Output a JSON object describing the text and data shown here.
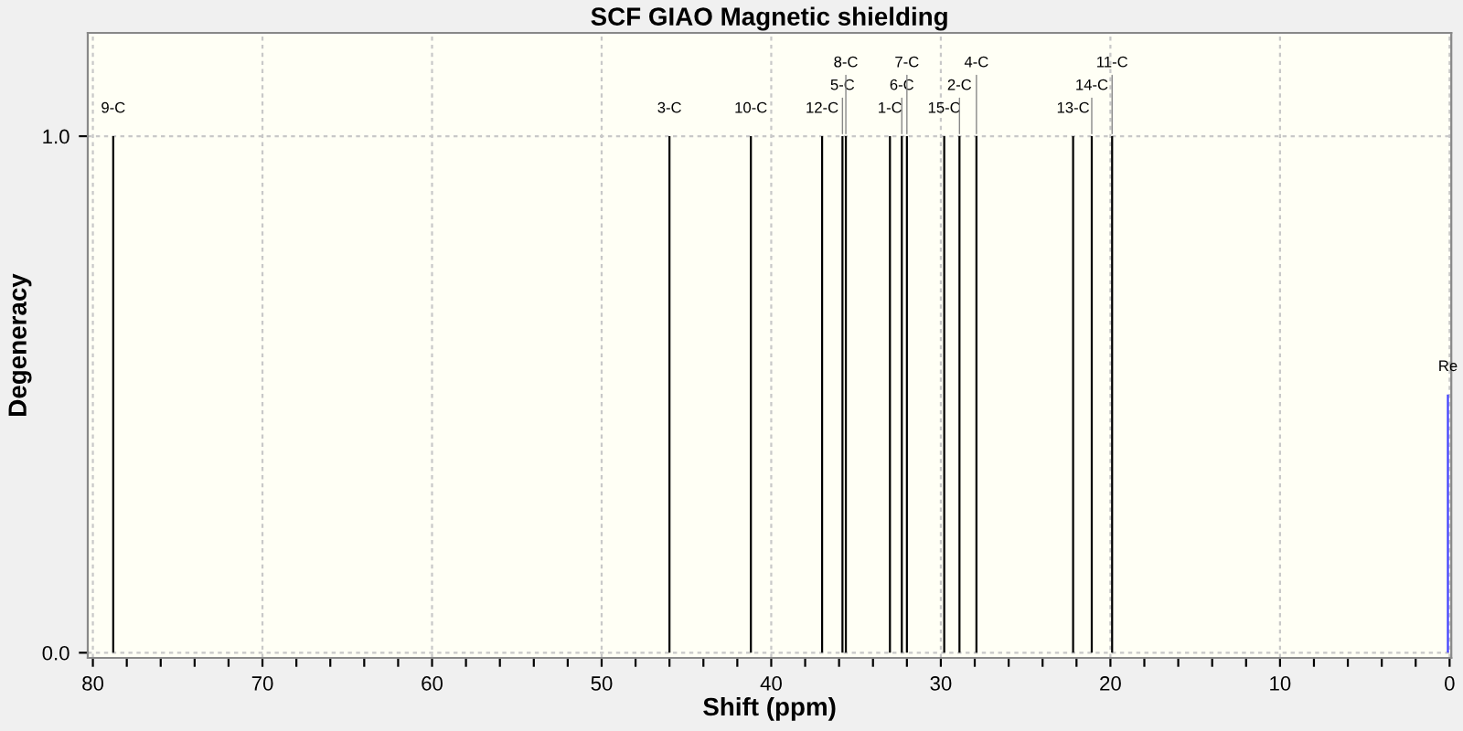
{
  "chart_data": {
    "type": "bar",
    "title": "SCF GIAO Magnetic shielding",
    "xlabel": "Shift (ppm)",
    "ylabel": "Degeneracy",
    "series": [
      {
        "color": "#000000",
        "x": [
          78.8,
          46.0,
          41.2,
          37.0,
          35.8,
          35.6,
          33.0,
          32.3,
          32.0,
          29.8,
          28.9,
          27.9,
          22.2,
          21.1,
          19.9
        ],
        "values": [
          1,
          1,
          1,
          1,
          1,
          1,
          1,
          1,
          1,
          1,
          1,
          1,
          1,
          1,
          1
        ]
      },
      {
        "color": "#4040ff",
        "x": [
          0.1
        ],
        "values": [
          0.5
        ]
      }
    ],
    "annotations": [
      {
        "text": "9-C",
        "x": 78.8,
        "y": 1
      },
      {
        "text": "3-C",
        "x": 46.0,
        "y": 1
      },
      {
        "text": "10-C",
        "x": 41.2,
        "y": 1
      },
      {
        "text": "12-C",
        "x": 37.0,
        "y": 1
      },
      {
        "text": "5-C",
        "x": 35.8,
        "y": 1
      },
      {
        "text": "8-C",
        "x": 35.6,
        "y": 1
      },
      {
        "text": "1-C",
        "x": 33.0,
        "y": 1
      },
      {
        "text": "6-C",
        "x": 32.3,
        "y": 1
      },
      {
        "text": "7-C",
        "x": 32.0,
        "y": 1
      },
      {
        "text": "15-C",
        "x": 29.8,
        "y": 1
      },
      {
        "text": "2-C",
        "x": 28.9,
        "y": 1
      },
      {
        "text": "4-C",
        "x": 27.9,
        "y": 1
      },
      {
        "text": "13-C",
        "x": 22.2,
        "y": 1
      },
      {
        "text": "14-C",
        "x": 21.1,
        "y": 1
      },
      {
        "text": "11-C",
        "x": 19.9,
        "y": 1
      },
      {
        "text": "Re",
        "x": 0.1,
        "y": 0.5
      }
    ],
    "xlim": [
      80.3,
      -0.1
    ],
    "ylim": [
      -0.01,
      1.2
    ],
    "xticks": [
      0,
      {
        "value": 2,
        "label": null
      },
      {
        "value": 4,
        "label": null
      },
      {
        "value": 6,
        "label": null
      },
      {
        "value": 8,
        "label": null
      },
      10,
      {
        "value": 12,
        "label": null
      },
      {
        "value": 14,
        "label": null
      },
      {
        "value": 16,
        "label": null
      },
      {
        "value": 18,
        "label": null
      },
      20,
      {
        "value": 22,
        "label": null
      },
      {
        "value": 24,
        "label": null
      },
      {
        "value": 26,
        "label": null
      },
      {
        "value": 28,
        "label": null
      },
      30,
      {
        "value": 32,
        "label": null
      },
      {
        "value": 34,
        "label": null
      },
      {
        "value": 36,
        "label": null
      },
      {
        "value": 38,
        "label": null
      },
      40,
      {
        "value": 42,
        "label": null
      },
      {
        "value": 44,
        "label": null
      },
      {
        "value": 46,
        "label": null
      },
      {
        "value": 48,
        "label": null
      },
      50,
      {
        "value": 52,
        "label": null
      },
      {
        "value": 54,
        "label": null
      },
      {
        "value": 56,
        "label": null
      },
      {
        "value": 58,
        "label": null
      },
      60,
      {
        "value": 62,
        "label": null
      },
      {
        "value": 64,
        "label": null
      },
      {
        "value": 66,
        "label": null
      },
      {
        "value": 68,
        "label": null
      },
      70,
      {
        "value": 72,
        "label": null
      },
      {
        "value": 74,
        "label": null
      },
      {
        "value": 76,
        "label": null
      },
      {
        "value": 78,
        "label": null
      },
      80
    ],
    "yticks": [
      {
        "value": 0,
        "label": "0.0"
      },
      {
        "value": 1,
        "label": "1.0"
      }
    ],
    "grid": true
  }
}
